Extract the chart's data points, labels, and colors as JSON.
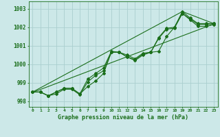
{
  "title": "Graphe pression niveau de la mer (hPa)",
  "bg_color": "#cce8e8",
  "grid_color": "#aacece",
  "line_color": "#1a6e1a",
  "xlim": [
    -0.5,
    23.5
  ],
  "ylim": [
    997.7,
    1003.4
  ],
  "yticks": [
    998,
    999,
    1000,
    1001,
    1002,
    1003
  ],
  "xticks": [
    0,
    1,
    2,
    3,
    4,
    5,
    6,
    7,
    8,
    9,
    10,
    11,
    12,
    13,
    14,
    15,
    16,
    17,
    18,
    19,
    20,
    21,
    22,
    23
  ],
  "series_data": [
    {
      "x": [
        0,
        1,
        2,
        3,
        4,
        5,
        6,
        7,
        8,
        9,
        10,
        11,
        12,
        13,
        14,
        15,
        16,
        17,
        18,
        19,
        20,
        21,
        22,
        23
      ],
      "y": [
        998.5,
        998.5,
        998.3,
        998.5,
        998.7,
        998.7,
        998.4,
        999.2,
        999.5,
        999.8,
        1000.7,
        1000.65,
        1000.5,
        1000.3,
        1000.6,
        1000.65,
        1000.7,
        1001.5,
        1002.0,
        1002.85,
        1002.5,
        1002.2,
        1002.2,
        1002.2
      ],
      "markers": true
    },
    {
      "x": [
        0,
        1,
        2,
        3,
        4,
        5,
        6,
        7,
        8,
        9,
        10,
        11,
        12,
        13,
        14,
        15,
        16,
        17,
        18,
        19,
        20,
        21,
        22,
        23
      ],
      "y": [
        998.5,
        998.5,
        998.3,
        998.5,
        998.7,
        998.7,
        998.4,
        998.8,
        999.1,
        999.5,
        1000.65,
        1000.65,
        1000.4,
        1000.2,
        1000.5,
        1000.65,
        1001.4,
        1001.9,
        1001.95,
        1002.75,
        1002.4,
        1002.05,
        1002.05,
        1002.15
      ],
      "markers": true
    },
    {
      "x": [
        0,
        1,
        2,
        3,
        4,
        5,
        6,
        7,
        8,
        9,
        10,
        11,
        12,
        13,
        14,
        15,
        16,
        17,
        18,
        19,
        20,
        21,
        22,
        23
      ],
      "y": [
        998.5,
        998.5,
        998.3,
        998.4,
        998.65,
        998.65,
        998.35,
        999.05,
        999.4,
        999.65,
        1000.65,
        1000.65,
        1000.4,
        1000.25,
        1000.55,
        1000.65,
        1001.45,
        1001.95,
        1002.0,
        1002.75,
        1002.45,
        1002.15,
        1002.15,
        1002.2
      ],
      "markers": true
    },
    {
      "x": [
        0,
        23
      ],
      "y": [
        998.48,
        1002.18
      ],
      "markers": false
    },
    {
      "x": [
        0,
        19,
        23
      ],
      "y": [
        998.5,
        1002.85,
        1002.2
      ],
      "markers": false
    }
  ]
}
